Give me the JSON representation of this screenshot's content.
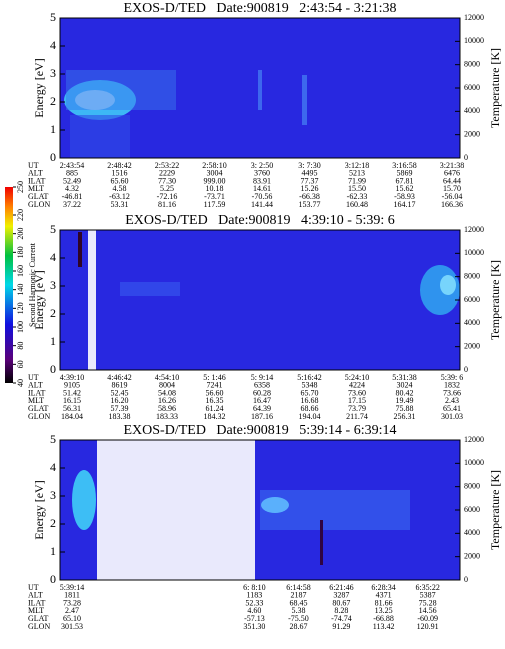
{
  "chart_data": [
    {
      "type": "spectrogram",
      "title": "EXOS-D/TED   Date:900819   2:43:54 - 3:21:38",
      "ylabel": "Energy [eV]",
      "ylim": [
        0,
        5
      ],
      "yticks": [
        0,
        1,
        2,
        3,
        4,
        5
      ],
      "y2label": "Temperature [K]",
      "y2lim": [
        0,
        12000
      ],
      "y2ticks": [
        0,
        2000,
        4000,
        6000,
        8000,
        10000,
        12000
      ],
      "orbit_table": {
        "row_labels": [
          "UT",
          "ALT",
          "ILAT",
          "MLT",
          "GLAT",
          "GLON"
        ],
        "rows": [
          [
            "2:43:54",
            "2:48:42",
            "2:53:22",
            "2:58:10",
            "3: 2:50",
            "3: 7:30",
            "3:12:18",
            "3:16:58",
            "3:21:38"
          ],
          [
            "885",
            "1516",
            "2229",
            "3004",
            "3760",
            "4495",
            "5213",
            "5869",
            "6476"
          ],
          [
            "52.49",
            "65.60",
            "77.30",
            "999.00",
            "83.91",
            "77.37",
            "71.99",
            "67.81",
            "64.44"
          ],
          [
            "4.32",
            "4.58",
            "5.25",
            "10.18",
            "14.61",
            "15.26",
            "15.50",
            "15.62",
            "15.70"
          ],
          [
            "-46.81",
            "-63.12",
            "-72.16",
            "-73.71",
            "-70.56",
            "-66.38",
            "-62.33",
            "-58.93",
            "-56.04"
          ],
          [
            "37.22",
            "53.31",
            "81.16",
            "117.59",
            "141.44",
            "153.77",
            "160.48",
            "164.17",
            "166.36"
          ]
        ]
      }
    },
    {
      "type": "spectrogram",
      "title": "EXOS-D/TED   Date:900819   4:39:10 - 5:39: 6",
      "ylabel": "Energy [eV]",
      "ylim": [
        0,
        5
      ],
      "yticks": [
        0,
        1,
        2,
        3,
        4,
        5
      ],
      "y2label": "Temperature [K]",
      "y2lim": [
        0,
        12000
      ],
      "y2ticks": [
        0,
        2000,
        4000,
        6000,
        8000,
        10000,
        12000
      ],
      "colorbar": {
        "label": "Second Harmonic Current",
        "lim": [
          40,
          250
        ],
        "ticks": [
          40,
          60,
          80,
          100,
          120,
          140,
          160,
          180,
          200,
          220,
          250
        ]
      },
      "orbit_table": {
        "row_labels": [
          "UT",
          "ALT",
          "ILAT",
          "MLT",
          "GLAT",
          "GLON"
        ],
        "rows": [
          [
            "4:39:10",
            "4:46:42",
            "4:54:10",
            "5: 1:46",
            "5: 9:14",
            "5:16:42",
            "5:24:10",
            "5:31:38",
            "5:39: 6"
          ],
          [
            "9105",
            "8619",
            "8004",
            "7241",
            "6358",
            "5348",
            "4224",
            "3024",
            "1832"
          ],
          [
            "51.42",
            "52.45",
            "54.08",
            "56.60",
            "60.28",
            "65.70",
            "73.60",
            "80.42",
            "73.66"
          ],
          [
            "16.15",
            "16.20",
            "16.26",
            "16.35",
            "16.47",
            "16.68",
            "17.15",
            "19.49",
            "2.43"
          ],
          [
            "56.31",
            "57.39",
            "58.96",
            "61.24",
            "64.39",
            "68.66",
            "73.79",
            "75.88",
            "65.41"
          ],
          [
            "184.04",
            "183.38",
            "183.33",
            "184.32",
            "187.16",
            "194.04",
            "211.74",
            "256.31",
            "301.03"
          ]
        ]
      }
    },
    {
      "type": "spectrogram",
      "title": "EXOS-D/TED   Date:900819   5:39:14 - 6:39:14",
      "ylabel": "Energy [eV]",
      "ylim": [
        0,
        5
      ],
      "yticks": [
        0,
        1,
        2,
        3,
        4,
        5
      ],
      "y2label": "Temperature [K]",
      "y2lim": [
        0,
        12000
      ],
      "y2ticks": [
        0,
        2000,
        4000,
        6000,
        8000,
        10000,
        12000
      ],
      "orbit_table": {
        "row_labels": [
          "UT",
          "ALT",
          "ILAT",
          "MLT",
          "GLAT",
          "GLON"
        ],
        "rows": [
          [
            "5:39:14",
            "6: 8:10",
            "6:14:58",
            "6:21:46",
            "6:28:34",
            "6:35:22"
          ],
          [
            "1811",
            "1183",
            "2187",
            "3287",
            "4371",
            "5387"
          ],
          [
            "73.28",
            "52.33",
            "68.45",
            "80.67",
            "81.66",
            "75.28"
          ],
          [
            "2.47",
            "4.60",
            "5.38",
            "8.28",
            "13.25",
            "14.56"
          ],
          [
            "65.10",
            "-57.13",
            "-75.50",
            "-74.74",
            "-66.88",
            "-60.09"
          ],
          [
            "301.53",
            "351.30",
            "28.67",
            "91.29",
            "113.42",
            "120.91"
          ]
        ]
      }
    }
  ]
}
